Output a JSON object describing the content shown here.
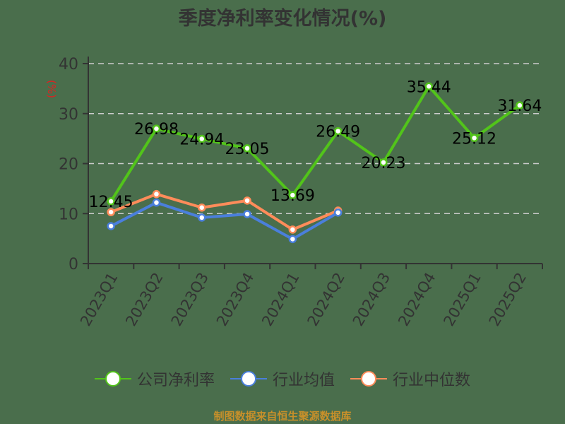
{
  "title": "季度净利率变化情况(%)",
  "footer": "制图数据来自恒生聚源数据库",
  "colors": {
    "company": "#52c41a",
    "industry_avg": "#4a7fdc",
    "industry_median": "#ff8c5a",
    "axis": "#333333",
    "grid": "#cccccc",
    "ylabel": "#e02020",
    "footer": "#c8902a"
  },
  "legend": [
    {
      "label": "公司净利率",
      "color": "#52c41a"
    },
    {
      "label": "行业均值",
      "color": "#4a7fdc"
    },
    {
      "label": "行业中位数",
      "color": "#ff8c5a"
    }
  ],
  "chart_data": {
    "type": "line",
    "title": "季度净利率变化情况(%)",
    "xlabel": "",
    "ylabel": "(%)",
    "ylim": [
      0,
      40
    ],
    "yticks": [
      0,
      10,
      20,
      30,
      40
    ],
    "grid": true,
    "legend_position": "bottom",
    "categories": [
      "2023Q1",
      "2023Q2",
      "2023Q3",
      "2023Q4",
      "2024Q1",
      "2024Q2",
      "2024Q3",
      "2024Q4",
      "2025Q1",
      "2025Q2"
    ],
    "series": [
      {
        "name": "公司净利率",
        "values": [
          12.45,
          26.98,
          24.94,
          23.05,
          13.69,
          26.49,
          20.23,
          35.44,
          25.12,
          31.64
        ],
        "labels": true
      },
      {
        "name": "行业均值",
        "values": [
          7.5,
          12.2,
          9.2,
          9.9,
          4.9,
          10.2,
          null,
          null,
          null,
          null
        ],
        "labels": false
      },
      {
        "name": "行业中位数",
        "values": [
          10.3,
          13.9,
          11.2,
          12.6,
          6.8,
          10.6,
          null,
          null,
          null,
          null
        ],
        "labels": false
      }
    ]
  }
}
